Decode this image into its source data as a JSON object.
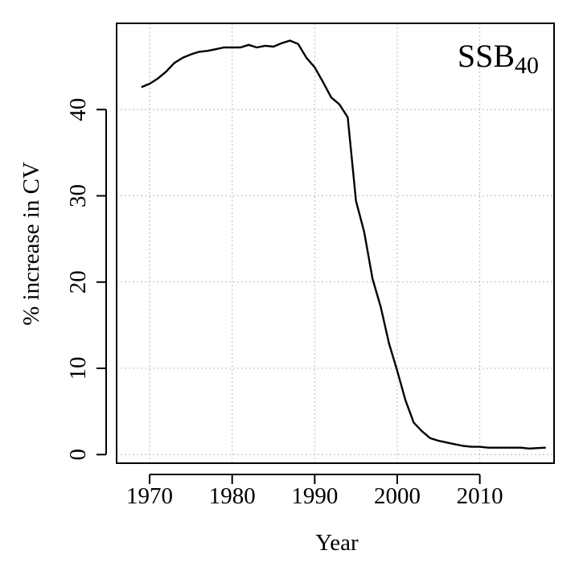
{
  "chart_data": {
    "type": "line",
    "title": "",
    "xlabel": "Year",
    "ylabel": "% increase in CV",
    "panel_label": "SSB",
    "panel_label_subscript": "40",
    "xlim": [
      1966,
      2019
    ],
    "ylim": [
      -1,
      50
    ],
    "grid": true,
    "x_ticks": [
      1970,
      1980,
      1990,
      2000,
      2010
    ],
    "y_ticks": [
      0,
      10,
      20,
      30,
      40
    ],
    "series": [
      {
        "color": "#000000",
        "x": [
          1969,
          1970,
          1971,
          1972,
          1973,
          1974,
          1975,
          1976,
          1977,
          1978,
          1979,
          1980,
          1981,
          1982,
          1983,
          1984,
          1985,
          1986,
          1987,
          1988,
          1989,
          1990,
          1991,
          1992,
          1993,
          1994,
          1995,
          1996,
          1997,
          1998,
          1999,
          2000,
          2001,
          2002,
          2003,
          2004,
          2005,
          2006,
          2007,
          2008,
          2009,
          2010,
          2011,
          2012,
          2013,
          2014,
          2015,
          2016,
          2017,
          2018
        ],
        "y": [
          42.6,
          43.0,
          43.6,
          44.4,
          45.4,
          46.0,
          46.4,
          46.7,
          46.8,
          47.0,
          47.2,
          47.2,
          47.2,
          47.5,
          47.2,
          47.4,
          47.3,
          47.7,
          48.0,
          47.6,
          46.0,
          44.9,
          43.2,
          41.4,
          40.6,
          39.1,
          29.4,
          25.8,
          20.4,
          17.1,
          12.9,
          9.7,
          6.3,
          3.7,
          2.7,
          1.9,
          1.6,
          1.4,
          1.2,
          1.0,
          0.9,
          0.9,
          0.8,
          0.8,
          0.8,
          0.8,
          0.8,
          0.7,
          0.75,
          0.8
        ]
      }
    ]
  }
}
